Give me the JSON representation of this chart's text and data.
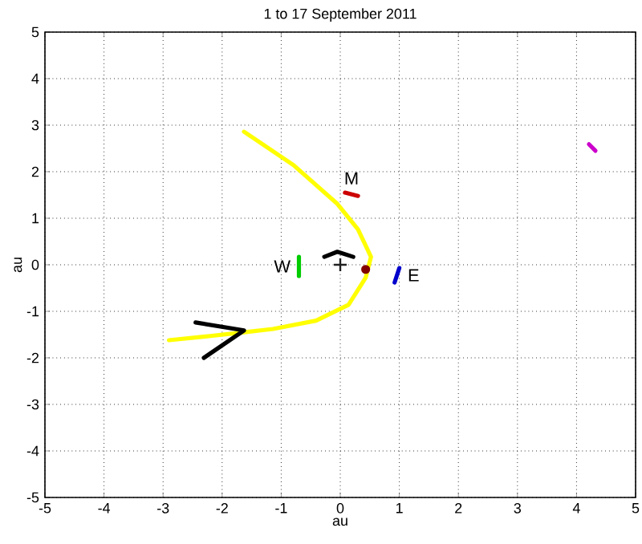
{
  "chart_data": {
    "type": "line",
    "title": "1 to 17 September 2011",
    "xlabel": "au",
    "ylabel": "au",
    "xlim": [
      -5,
      5
    ],
    "ylim": [
      -5,
      5
    ],
    "xticks": [
      -5,
      -4,
      -3,
      -2,
      -1,
      0,
      1,
      2,
      3,
      4,
      5
    ],
    "yticks": [
      -5,
      -4,
      -3,
      -2,
      -1,
      0,
      1,
      2,
      3,
      4,
      5
    ],
    "grid": true,
    "line_style": "solid",
    "marker": "none",
    "series": [
      {
        "color": "#ffff00",
        "x": [
          -1.63,
          -0.79,
          -0.05,
          0.3,
          0.52,
          0.43,
          0.14,
          -0.41,
          -1.14,
          -1.63,
          -2.2,
          -2.9
        ],
        "values": [
          2.86,
          2.14,
          1.31,
          0.76,
          0.17,
          -0.28,
          -0.86,
          -1.2,
          -1.38,
          -1.45,
          -1.53,
          -1.62
        ]
      },
      {
        "color": "#000000",
        "x": [
          -2.45,
          -1.63,
          -2.31
        ],
        "values": [
          -1.24,
          -1.41,
          -2.0
        ]
      },
      {
        "color": "#000000",
        "x": [
          -0.27,
          -0.05,
          0.22
        ],
        "values": [
          0.17,
          0.28,
          0.17
        ]
      },
      {
        "name": "M",
        "color": "#cc0000",
        "x": [
          0.08,
          0.3
        ],
        "values": [
          1.55,
          1.48
        ]
      },
      {
        "name": "W",
        "color": "#00cc00",
        "x": [
          -0.7,
          -0.7
        ],
        "values": [
          0.17,
          -0.24
        ]
      },
      {
        "name": "E",
        "color": "#0000cc",
        "x": [
          1.0,
          0.92
        ],
        "values": [
          -0.07,
          -0.38
        ]
      },
      {
        "color": "#cc00cc",
        "x": [
          4.21,
          4.32
        ],
        "values": [
          2.59,
          2.45
        ]
      },
      {
        "type": "scatter",
        "marker": "cross",
        "color": "#202020",
        "x": [
          0
        ],
        "values": [
          0
        ]
      },
      {
        "type": "scatter",
        "marker": "circle",
        "color": "#800000",
        "x": [
          0.43
        ],
        "values": [
          -0.1
        ]
      }
    ]
  }
}
